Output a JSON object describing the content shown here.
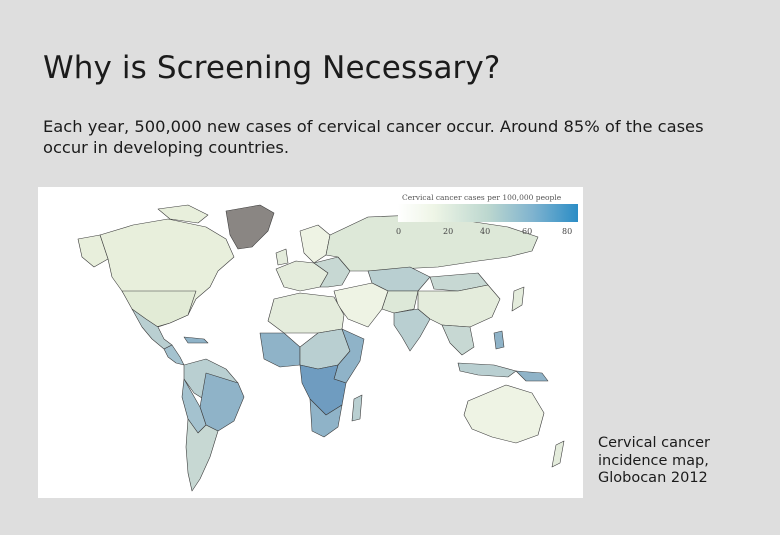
{
  "slide": {
    "title": "Why is Screening Necessary?",
    "body": "Each year, 500,000 new cases of cervical cancer occur. Around 85% of the cases occur in developing countries.",
    "caption": "Cervical cancer\nincidence map,\nGlobocan 2012"
  },
  "map": {
    "legend": {
      "title": "Cervical cancer cases per 100,000 people",
      "ticks": [
        "0",
        "20",
        "40",
        "60",
        "80"
      ],
      "colors": [
        "#ffffff",
        "#eef5e6",
        "#bcd7cf",
        "#7fb3cf",
        "#2b8dc6"
      ]
    },
    "colors": {
      "very_low": "#eef3e4",
      "low": "#dde8d8",
      "medium": "#b9cfd1",
      "high": "#8fb3c8",
      "very_high": "#6f9cc0",
      "no_data": "#8a8683",
      "border": "#3c3c3c"
    }
  }
}
